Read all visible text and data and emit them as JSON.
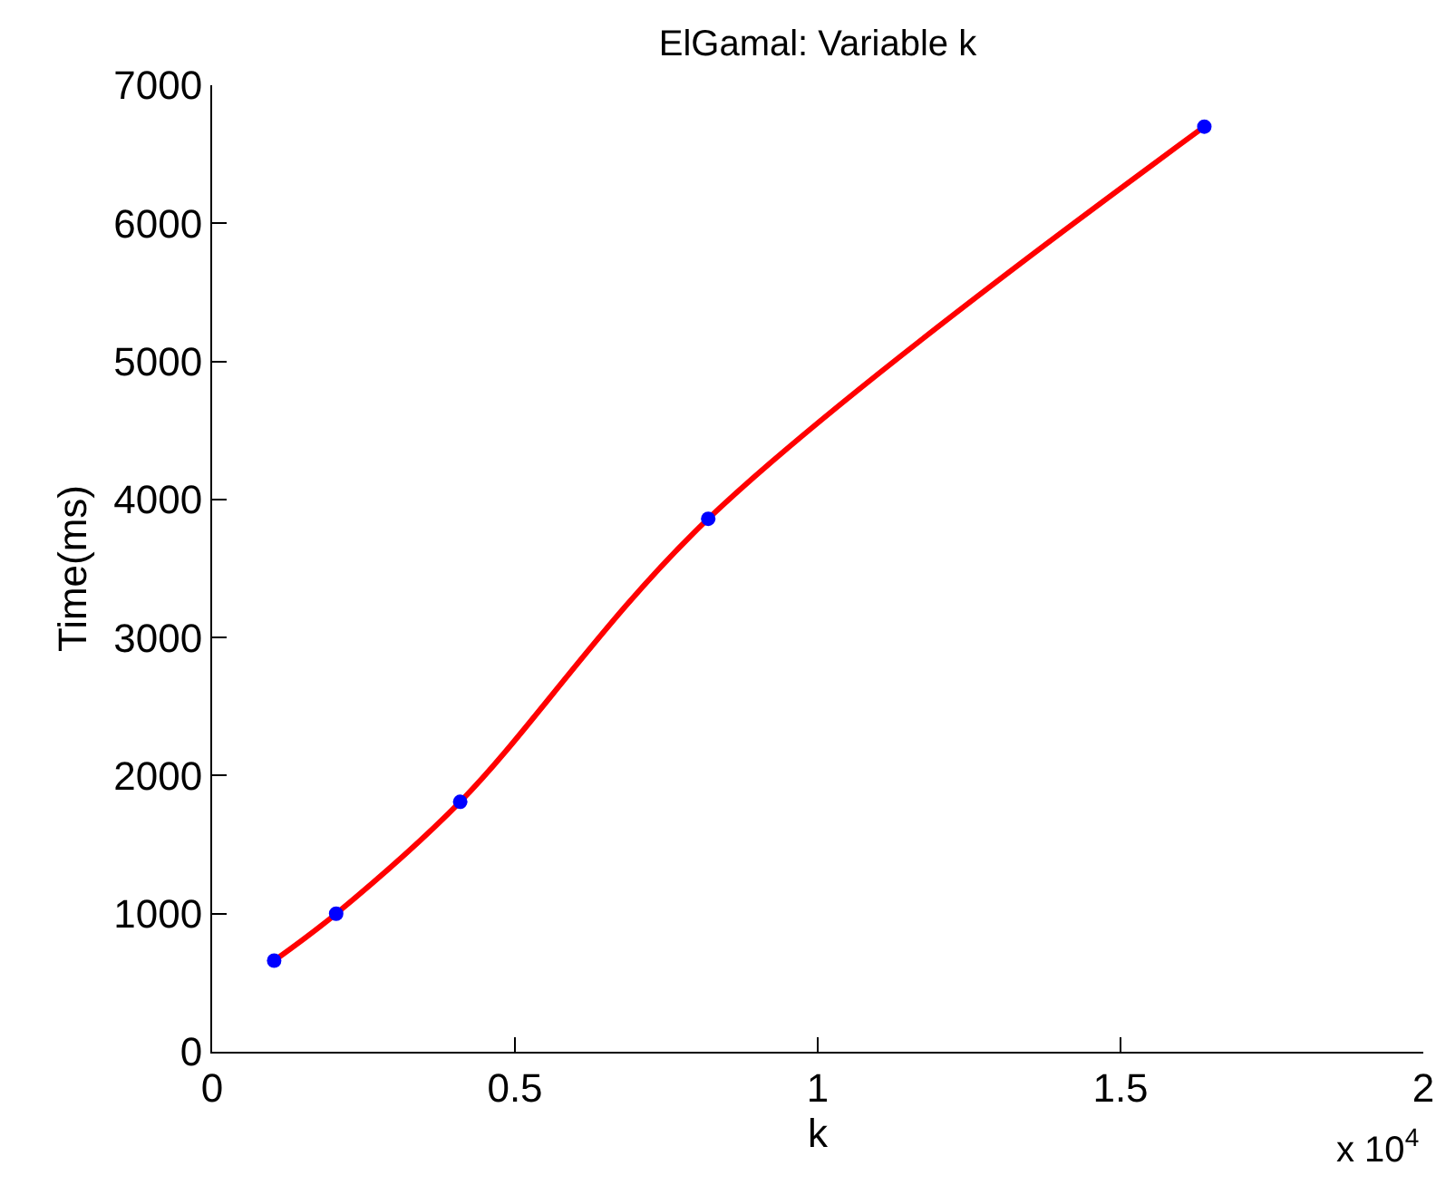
{
  "chart_data": {
    "type": "line",
    "title": "ElGamal: Variable k",
    "xlabel": "k",
    "ylabel": "Time(ms)",
    "x": [
      0.1024,
      0.2048,
      0.4096,
      0.8192,
      1.6384
    ],
    "series": [
      {
        "color": "#ff0000",
        "values": [
          660,
          1000,
          1810,
          3860,
          6700
        ],
        "marker": "none"
      },
      {
        "type": "scatter",
        "color": "#0000ff",
        "values": [
          660,
          1000,
          1810,
          3860,
          6700
        ],
        "marker": "circle"
      }
    ],
    "xlim": [
      0,
      2
    ],
    "xticks": [
      0,
      0.5,
      1,
      1.5,
      2
    ],
    "ylim": [
      0,
      7000
    ],
    "yticks": [
      0,
      1000,
      2000,
      3000,
      4000,
      5000,
      6000,
      7000
    ],
    "annotations": [
      "x 10$^{4}$"
    ]
  }
}
